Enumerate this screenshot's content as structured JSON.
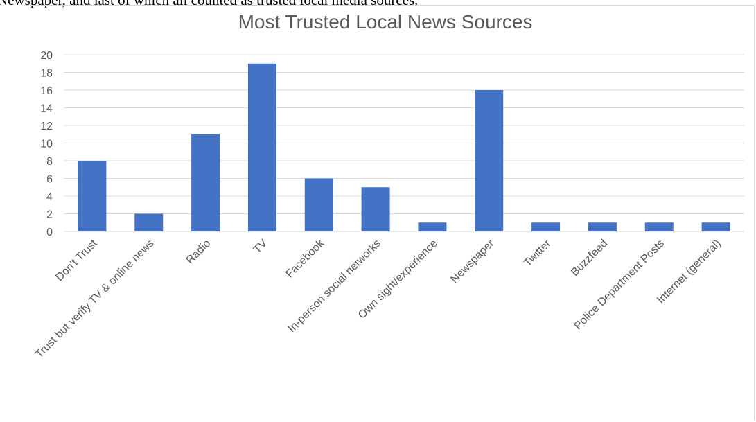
{
  "document": {
    "text_above": "Newspaper, and last of which all counted as trusted local media sources."
  },
  "colors": {
    "bar": "#4472c4",
    "gridline": "#d9d9d9",
    "axis_text": "#595959",
    "title": "#595959"
  },
  "chart_data": {
    "type": "bar",
    "title": "Most Trusted Local News Sources",
    "xlabel": "",
    "ylabel": "",
    "ylim": [
      0,
      20
    ],
    "yticks": [
      0,
      2,
      4,
      6,
      8,
      10,
      12,
      14,
      16,
      18,
      20
    ],
    "grid": true,
    "legend": "none",
    "categories": [
      "Don't Trust",
      "Trust but verify TV & online news",
      "Radio",
      "TV",
      "Facebook",
      "In-person social networks",
      "Own sight/experience",
      "Newspaper",
      "Twitter",
      "Buzzfeed",
      "Police Department Posts",
      "Internet (general)"
    ],
    "values": [
      8,
      2,
      11,
      19,
      6,
      5,
      1,
      16,
      1,
      1,
      1,
      1
    ]
  }
}
